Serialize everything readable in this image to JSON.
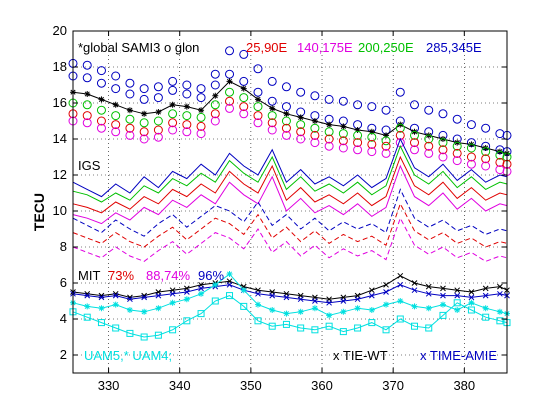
{
  "chart_data": {
    "type": "line",
    "ylabel": "TECU",
    "xlim": [
      325,
      386
    ],
    "ylim": [
      1,
      20
    ],
    "xticks": [
      330,
      340,
      350,
      360,
      370,
      380
    ],
    "yticks": [
      2,
      4,
      6,
      8,
      10,
      12,
      14,
      16,
      18,
      20
    ],
    "grid": true,
    "annotations": {
      "sami3": "*global SAMI3 o glon",
      "sami3_colors": "#000000",
      "lon_groups": [
        {
          "text": "25,90E",
          "color": "#e00000"
        },
        {
          "text": "140,175E",
          "color": "#e000e0"
        },
        {
          "text": "200,250E",
          "color": "#00c000"
        },
        {
          "text": "285,345E",
          "color": "#0000c0"
        }
      ],
      "igs": "IGS",
      "mit_prefix": "MIT",
      "mit_groups": [
        {
          "text": "73%",
          "color": "#e00000"
        },
        {
          "text": "88,74%",
          "color": "#e000e0"
        },
        {
          "text": "96%",
          "color": "#0000c0"
        }
      ],
      "uam": "UAM5,* UAM4;",
      "uam_color": "#00e0e0",
      "tie": "x TIE-WT",
      "tie_color": "#000000",
      "time": "x TIME-AMIE",
      "time_color": "#0000c0"
    },
    "x": [
      325,
      327,
      329,
      331,
      333,
      335,
      337,
      339,
      341,
      343,
      345,
      347,
      349,
      351,
      353,
      355,
      357,
      359,
      361,
      363,
      365,
      367,
      369,
      371,
      373,
      375,
      377,
      379,
      381,
      383,
      385,
      386
    ],
    "series": [
      {
        "color": "#0000c0",
        "style": "circle",
        "values": [
          18.2,
          18.1,
          17.8,
          17.5,
          17.1,
          16.8,
          16.9,
          17.2,
          17.0,
          16.8,
          17.6,
          18.9,
          18.7,
          17.9,
          17.2,
          16.9,
          16.6,
          16.4,
          16.2,
          16.1,
          15.9,
          15.8,
          15.6,
          16.6,
          15.9,
          15.6,
          15.4,
          15.1,
          14.8,
          14.6,
          14.3,
          14.2
        ]
      },
      {
        "color": "#0000c0",
        "style": "circle",
        "values": [
          17.5,
          17.4,
          17.1,
          16.8,
          16.5,
          16.2,
          16.3,
          16.7,
          16.5,
          16.3,
          17.0,
          17.6,
          17.2,
          16.6,
          16.1,
          15.8,
          15.5,
          15.3,
          15.1,
          15.0,
          14.8,
          14.6,
          14.5,
          15.0,
          14.6,
          14.4,
          14.2,
          14.0,
          13.8,
          13.6,
          13.4,
          13.3
        ]
      },
      {
        "color": "#000000",
        "style": "star",
        "values": [
          16.6,
          16.5,
          16.2,
          15.9,
          15.6,
          15.4,
          15.5,
          15.9,
          15.8,
          15.6,
          16.4,
          17.2,
          16.8,
          16.2,
          15.7,
          15.4,
          15.2,
          15.0,
          14.8,
          14.7,
          14.5,
          14.4,
          14.2,
          14.8,
          14.4,
          14.2,
          14.0,
          13.8,
          13.7,
          13.5,
          13.3,
          13.2
        ]
      },
      {
        "color": "#00c000",
        "style": "circle",
        "values": [
          16.0,
          15.9,
          15.6,
          15.3,
          15.1,
          14.9,
          15.0,
          15.4,
          15.3,
          15.2,
          15.9,
          16.6,
          16.3,
          15.8,
          15.3,
          15.0,
          14.8,
          14.6,
          14.4,
          14.3,
          14.2,
          14.1,
          13.9,
          14.6,
          14.2,
          14.0,
          13.8,
          13.6,
          13.5,
          13.3,
          13.1,
          13.0
        ]
      },
      {
        "color": "#e00000",
        "style": "circle",
        "values": [
          15.4,
          15.3,
          15.0,
          14.8,
          14.6,
          14.4,
          14.5,
          14.9,
          14.8,
          14.7,
          15.4,
          16.1,
          15.8,
          15.3,
          14.9,
          14.6,
          14.4,
          14.2,
          14.0,
          13.9,
          13.8,
          13.7,
          13.6,
          14.2,
          13.8,
          13.6,
          13.4,
          13.2,
          13.0,
          12.9,
          12.7,
          12.6
        ]
      },
      {
        "color": "#e000e0",
        "style": "circle",
        "values": [
          15.0,
          14.9,
          14.6,
          14.4,
          14.2,
          14.0,
          14.1,
          14.5,
          14.4,
          14.3,
          15.0,
          15.7,
          15.4,
          14.9,
          14.5,
          14.2,
          14.0,
          13.8,
          13.6,
          13.5,
          13.4,
          13.3,
          13.2,
          13.8,
          13.4,
          13.2,
          13.0,
          12.8,
          12.6,
          12.5,
          12.3,
          12.2
        ]
      },
      {
        "color": "#0000c0",
        "style": "line",
        "values": [
          11.6,
          11.2,
          10.8,
          11.5,
          11.0,
          11.9,
          11.3,
          12.2,
          11.8,
          12.6,
          12.0,
          13.2,
          12.5,
          12.0,
          13.4,
          11.6,
          12.3,
          11.5,
          11.9,
          11.4,
          12.0,
          11.3,
          11.8,
          14.0,
          12.4,
          11.9,
          12.6,
          11.7,
          12.3,
          11.6,
          12.0,
          11.9
        ]
      },
      {
        "color": "#00c000",
        "style": "line",
        "values": [
          11.1,
          10.9,
          10.5,
          11.0,
          10.6,
          11.4,
          11.0,
          11.8,
          11.4,
          12.1,
          11.6,
          12.8,
          12.1,
          11.6,
          13.0,
          11.2,
          11.9,
          11.1,
          11.5,
          11.0,
          11.6,
          10.9,
          11.4,
          13.6,
          12.0,
          11.5,
          12.2,
          11.3,
          11.9,
          11.2,
          11.6,
          11.5
        ]
      },
      {
        "color": "#e00000",
        "style": "line",
        "values": [
          10.4,
          10.2,
          9.9,
          10.5,
          10.1,
          10.8,
          10.4,
          11.2,
          10.8,
          11.5,
          11.0,
          12.2,
          11.5,
          11.0,
          12.5,
          10.6,
          11.3,
          10.5,
          10.9,
          10.4,
          11.0,
          10.3,
          10.8,
          13.0,
          11.4,
          10.9,
          11.6,
          10.7,
          11.3,
          10.6,
          11.0,
          10.9
        ]
      },
      {
        "color": "#e000e0",
        "style": "line",
        "values": [
          9.8,
          9.6,
          9.3,
          9.9,
          9.5,
          10.2,
          9.8,
          10.6,
          10.2,
          10.9,
          10.4,
          11.6,
          10.9,
          10.4,
          11.9,
          10.0,
          10.7,
          9.9,
          10.3,
          9.8,
          10.4,
          9.7,
          10.2,
          12.5,
          10.8,
          10.3,
          11.0,
          10.1,
          10.7,
          10.0,
          10.4,
          10.3
        ]
      },
      {
        "color": "#0000c0",
        "style": "dash",
        "values": [
          9.6,
          9.2,
          8.8,
          9.5,
          9.0,
          8.6,
          9.3,
          9.8,
          9.1,
          9.7,
          10.3,
          10.0,
          9.4,
          10.5,
          9.2,
          9.8,
          9.0,
          9.6,
          8.9,
          9.4,
          9.0,
          9.3,
          8.8,
          11.2,
          9.6,
          9.1,
          9.5,
          8.9,
          9.2,
          8.7,
          9.0,
          8.9
        ]
      },
      {
        "color": "#e00000",
        "style": "dash",
        "values": [
          8.8,
          8.5,
          8.2,
          8.8,
          8.3,
          8.0,
          8.6,
          9.1,
          8.4,
          9.0,
          9.6,
          9.3,
          8.7,
          9.8,
          8.5,
          9.1,
          8.3,
          8.9,
          8.2,
          8.7,
          8.3,
          8.6,
          8.1,
          10.4,
          8.9,
          8.4,
          8.8,
          8.2,
          8.5,
          8.0,
          8.3,
          8.2
        ]
      },
      {
        "color": "#e000e0",
        "style": "dash",
        "values": [
          8.0,
          7.7,
          7.4,
          8.0,
          7.5,
          7.2,
          7.8,
          8.3,
          7.6,
          8.2,
          8.8,
          8.5,
          7.9,
          9.0,
          7.7,
          8.3,
          7.5,
          8.1,
          7.4,
          7.9,
          7.5,
          7.8,
          7.3,
          9.6,
          8.1,
          7.6,
          8.0,
          7.4,
          7.7,
          7.2,
          7.5,
          7.4
        ]
      },
      {
        "color": "#000000",
        "style": "xmark",
        "values": [
          5.5,
          5.4,
          5.3,
          5.4,
          5.2,
          5.3,
          5.5,
          5.6,
          5.7,
          5.9,
          6.0,
          6.1,
          5.8,
          5.6,
          5.5,
          5.4,
          5.3,
          5.2,
          5.1,
          5.2,
          5.3,
          5.6,
          5.9,
          6.4,
          6.0,
          5.8,
          5.7,
          5.6,
          5.5,
          5.7,
          5.8,
          5.6
        ]
      },
      {
        "color": "#0000c0",
        "style": "xmark",
        "values": [
          5.4,
          5.3,
          5.2,
          5.3,
          5.1,
          5.2,
          5.3,
          5.4,
          5.5,
          5.7,
          5.8,
          5.9,
          5.6,
          5.4,
          5.3,
          5.2,
          5.1,
          5.0,
          4.9,
          5.0,
          5.1,
          5.3,
          5.5,
          5.9,
          5.6,
          5.4,
          5.3,
          5.3,
          5.2,
          5.3,
          5.4,
          5.3
        ]
      },
      {
        "color": "#00e0e0",
        "style": "star",
        "values": [
          4.9,
          4.7,
          4.6,
          4.8,
          4.5,
          4.4,
          4.6,
          4.9,
          5.1,
          5.4,
          5.9,
          6.5,
          5.6,
          4.8,
          4.5,
          4.3,
          4.4,
          4.6,
          4.2,
          4.4,
          4.6,
          4.5,
          4.8,
          5.0,
          4.7,
          4.6,
          4.8,
          4.5,
          4.9,
          4.6,
          4.4,
          4.3
        ]
      },
      {
        "color": "#00e0e0",
        "style": "square",
        "values": [
          4.4,
          4.1,
          3.8,
          3.5,
          3.2,
          3.0,
          3.1,
          3.4,
          3.9,
          4.3,
          5.0,
          5.3,
          4.7,
          3.9,
          3.6,
          3.7,
          3.5,
          3.4,
          3.6,
          3.3,
          3.5,
          3.8,
          3.4,
          4.0,
          3.6,
          3.5,
          4.2,
          4.9,
          4.5,
          4.1,
          3.9,
          3.8
        ]
      }
    ]
  }
}
